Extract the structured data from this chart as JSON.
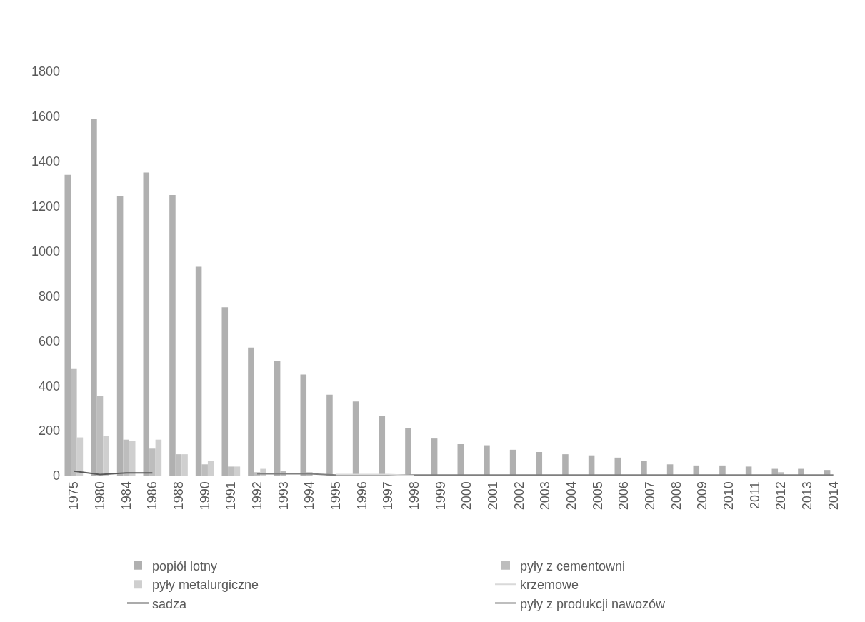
{
  "chart_data": {
    "type": "bar",
    "categories": [
      "1975",
      "1980",
      "1984",
      "1986",
      "1988",
      "1990",
      "1991",
      "1992",
      "1993",
      "1994",
      "1995",
      "1996",
      "1997",
      "1998",
      "1999",
      "2000",
      "2001",
      "2002",
      "2003",
      "2004",
      "2005",
      "2006",
      "2007",
      "2008",
      "2009",
      "2010",
      "2011",
      "2012",
      "2013",
      "2014"
    ],
    "series": [
      {
        "name": "popiół lotny",
        "color": "#b0b0b0",
        "values": [
          1340,
          1590,
          1245,
          1350,
          1250,
          930,
          750,
          570,
          510,
          450,
          360,
          330,
          265,
          210,
          165,
          140,
          135,
          115,
          105,
          95,
          90,
          80,
          65,
          50,
          45,
          45,
          40,
          30,
          30,
          25
        ]
      },
      {
        "name": "pyły z cementowni",
        "color": "#bdbdbd",
        "values": [
          475,
          355,
          160,
          120,
          95,
          50,
          40,
          15,
          20,
          15,
          null,
          null,
          null,
          null,
          null,
          null,
          null,
          null,
          null,
          null,
          null,
          null,
          null,
          null,
          null,
          null,
          null,
          15,
          null,
          null
        ]
      },
      {
        "name": "pyły metalurgiczne",
        "color": "#cfcfcf",
        "values": [
          170,
          175,
          155,
          160,
          95,
          65,
          40,
          30,
          null,
          null,
          null,
          null,
          null,
          null,
          null,
          null,
          null,
          null,
          null,
          null,
          null,
          null,
          null,
          null,
          null,
          null,
          null,
          null,
          null,
          null
        ]
      },
      {
        "name": "krzemowe",
        "type": "line",
        "color": "#d9d9d9",
        "values": [
          null,
          null,
          null,
          null,
          null,
          null,
          null,
          null,
          null,
          null,
          5,
          5,
          5,
          0,
          null,
          null,
          null,
          null,
          null,
          null,
          null,
          null,
          null,
          null,
          null,
          null,
          null,
          null,
          null,
          null
        ]
      },
      {
        "name": "sadza",
        "type": "line",
        "color": "#595959",
        "values": [
          20,
          5,
          12,
          12,
          null,
          null,
          null,
          null,
          null,
          null,
          null,
          null,
          null,
          null,
          null,
          null,
          null,
          null,
          null,
          null,
          null,
          null,
          null,
          null,
          null,
          null,
          null,
          null,
          null,
          null
        ]
      },
      {
        "name": "pyły z produkcji nawozów",
        "type": "line",
        "color": "#7f7f7f",
        "values": [
          null,
          null,
          null,
          null,
          null,
          null,
          null,
          8,
          8,
          8,
          2,
          2,
          2,
          2,
          2,
          2,
          2,
          2,
          2,
          2,
          2,
          2,
          2,
          2,
          2,
          2,
          2,
          2,
          2,
          2
        ]
      }
    ],
    "ylim": [
      0,
      1800
    ],
    "yticks": [
      0,
      200,
      400,
      600,
      800,
      1000,
      1200,
      1400,
      1600,
      1800
    ],
    "grid": "y",
    "legend": "bottom",
    "marker": "none",
    "line_style": "solid"
  }
}
